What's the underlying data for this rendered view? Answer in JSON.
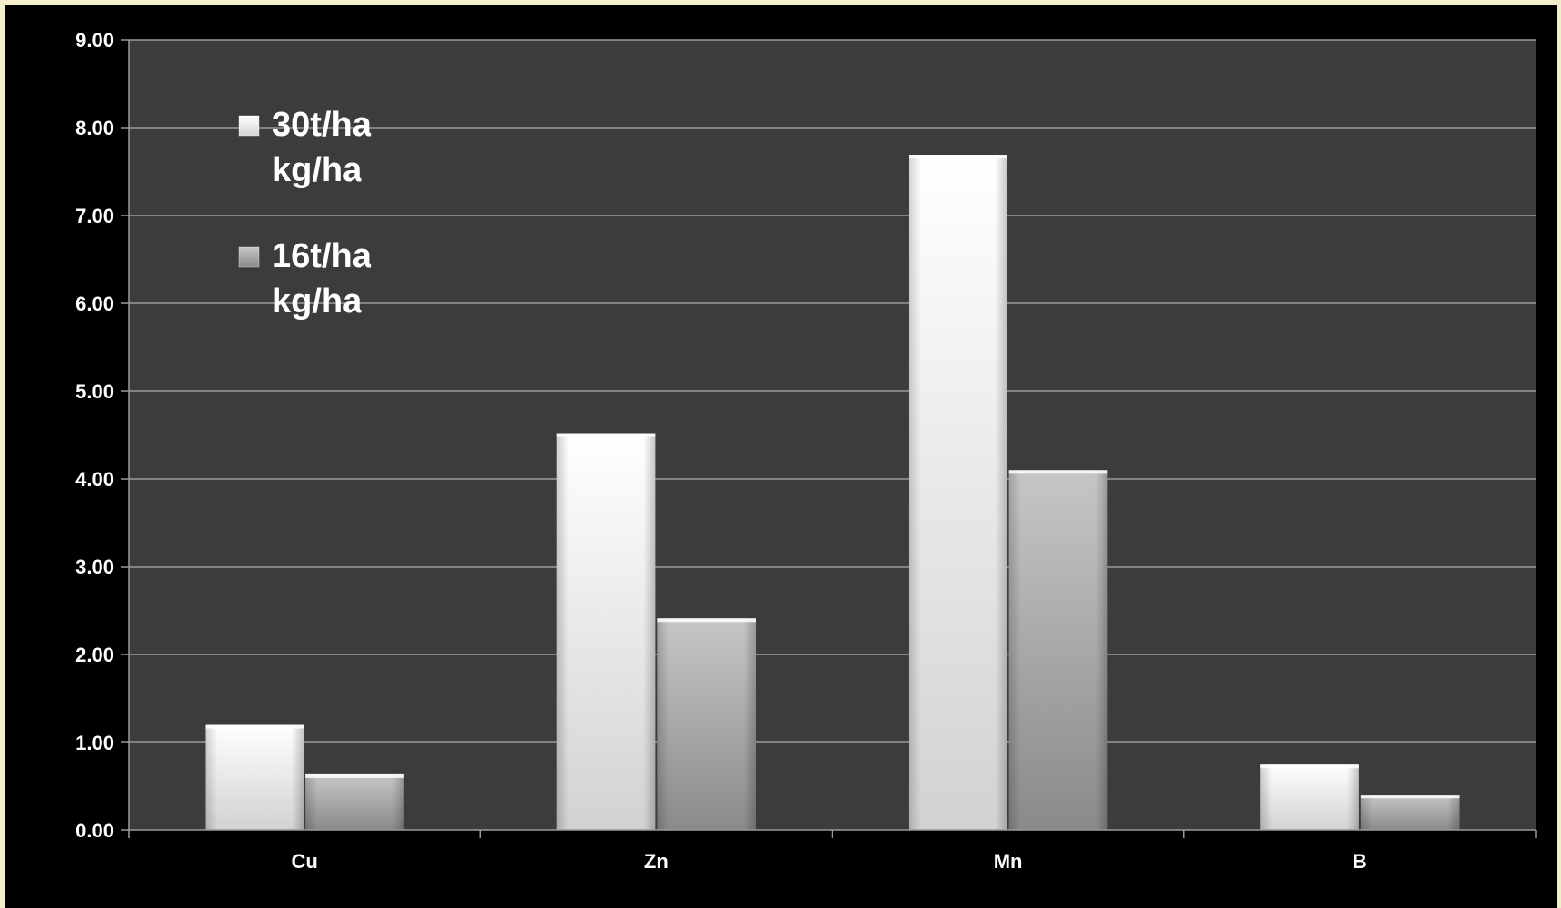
{
  "chart_data": {
    "type": "bar",
    "categories": [
      "Cu",
      "Zn",
      "Mn",
      "B"
    ],
    "series": [
      {
        "name": "30t/ha kg/ha",
        "name_lines": [
          "30t/ha",
          "kg/ha"
        ],
        "values": [
          1.2,
          4.52,
          7.69,
          0.75
        ],
        "color": "#f4f4f4"
      },
      {
        "name": "16t/ha kg/ha",
        "name_lines": [
          "16t/ha",
          "kg/ha"
        ],
        "values": [
          0.64,
          2.41,
          4.1,
          0.4
        ],
        "color": "#a8a8a8"
      }
    ],
    "title": "",
    "xlabel": "",
    "ylabel": "",
    "ylim": [
      0,
      9
    ],
    "yticks": [
      "0.00",
      "1.00",
      "2.00",
      "3.00",
      "4.00",
      "5.00",
      "6.00",
      "7.00",
      "8.00",
      "9.00"
    ],
    "grid": true,
    "legend_position": "top-left",
    "colors": {
      "plot_background": "#3c3c3c",
      "gridline": "#9a9a9a",
      "frame": "#000000",
      "border": "#f3efc8"
    }
  }
}
